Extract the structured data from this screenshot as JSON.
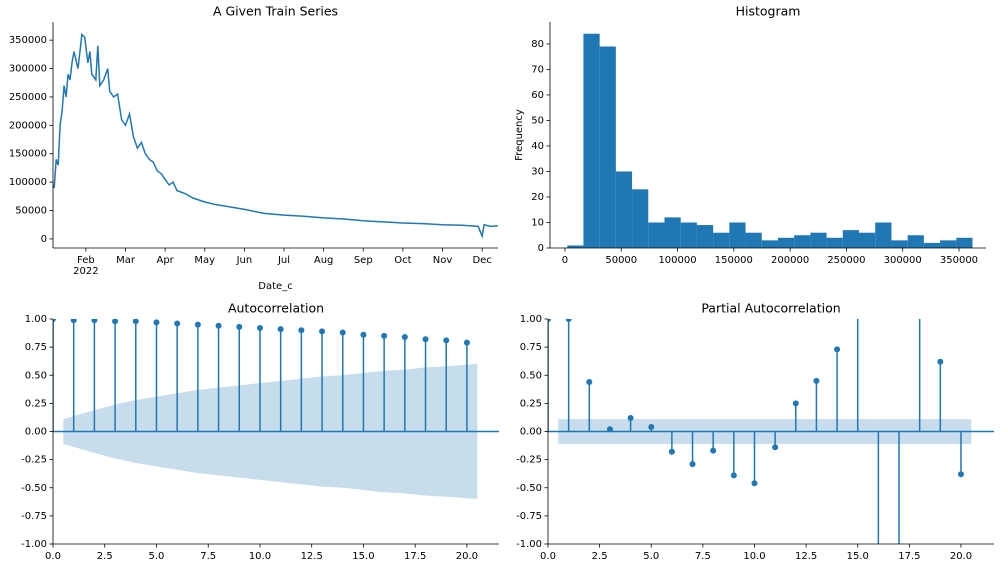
{
  "chart_data": [
    {
      "type": "line",
      "title": "A Given Train Series",
      "xlabel": "Date_c",
      "color": "#1f77b4",
      "x": [
        1.17,
        1.2,
        1.25,
        1.3,
        1.35,
        1.4,
        1.45,
        1.5,
        1.55,
        1.6,
        1.65,
        1.7,
        1.8,
        1.9,
        1.97,
        2.05,
        2.1,
        2.15,
        2.25,
        2.3,
        2.35,
        2.45,
        2.55,
        2.6,
        2.7,
        2.8,
        2.9,
        3.0,
        3.1,
        3.2,
        3.3,
        3.4,
        3.5,
        3.6,
        3.7,
        3.8,
        3.9,
        4.0,
        4.1,
        4.2,
        4.3,
        4.5,
        4.7,
        5.0,
        5.3,
        5.5,
        6.0,
        6.5,
        7.0,
        7.5,
        8.0,
        8.5,
        9.0,
        9.5,
        10.0,
        10.5,
        11.0,
        11.5,
        11.9,
        12.0,
        12.05,
        12.2,
        12.4
      ],
      "values": [
        95000,
        90000,
        140000,
        130000,
        200000,
        225000,
        270000,
        250000,
        290000,
        280000,
        310000,
        330000,
        300000,
        360000,
        355000,
        310000,
        330000,
        290000,
        280000,
        340000,
        270000,
        280000,
        300000,
        260000,
        250000,
        255000,
        210000,
        200000,
        220000,
        180000,
        160000,
        170000,
        150000,
        140000,
        135000,
        120000,
        115000,
        105000,
        95000,
        100000,
        85000,
        80000,
        72000,
        65000,
        60000,
        58000,
        52000,
        45000,
        42000,
        40000,
        37000,
        35000,
        32000,
        30000,
        28000,
        27000,
        25000,
        24000,
        22000,
        5000,
        25000,
        22000,
        23000
      ],
      "xlim": [
        1.17,
        12.4
      ],
      "xticks": [
        {
          "value": 2,
          "label": "Feb"
        },
        {
          "value": 3,
          "label": "Mar"
        },
        {
          "value": 4,
          "label": "Apr"
        },
        {
          "value": 5,
          "label": "May"
        },
        {
          "value": 6,
          "label": "Jun"
        },
        {
          "value": 7,
          "label": "Jul"
        },
        {
          "value": 8,
          "label": "Aug"
        },
        {
          "value": 9,
          "label": "Sep"
        },
        {
          "value": 10,
          "label": "Oct"
        },
        {
          "value": 11,
          "label": "Nov"
        },
        {
          "value": 12,
          "label": "Dec"
        }
      ],
      "year_label": "2022",
      "ylim": [
        -16000,
        382000
      ],
      "yticks": [
        0,
        50000,
        100000,
        150000,
        200000,
        250000,
        300000,
        350000
      ]
    },
    {
      "type": "histogram",
      "title": "Histogram",
      "ylabel": "Frequency",
      "color": "#1f77b4",
      "bins": [
        2000,
        16400,
        30800,
        45200,
        59600,
        74000,
        88400,
        102800,
        117200,
        131600,
        146000,
        160400,
        174800,
        189200,
        203600,
        218000,
        232400,
        246800,
        261200,
        275600,
        290000,
        304400,
        318800,
        333200,
        347600,
        362000
      ],
      "counts": [
        1,
        84,
        79,
        30,
        23,
        10,
        12,
        10,
        9,
        6,
        10,
        6,
        3,
        4,
        5,
        6,
        4,
        7,
        6,
        10,
        3,
        5,
        2,
        3,
        4
      ],
      "xlim": [
        -13300,
        374000
      ],
      "xticks": [
        0,
        50000,
        100000,
        150000,
        200000,
        250000,
        300000,
        350000
      ],
      "ylim": [
        0,
        88.6
      ],
      "yticks": [
        0,
        10,
        20,
        30,
        40,
        50,
        60,
        70,
        80
      ]
    },
    {
      "type": "stem",
      "title": "Autocorrelation",
      "color": "#1f77b4",
      "band_color": "#1f77b4",
      "x": [
        0,
        1,
        2,
        3,
        4,
        5,
        6,
        7,
        8,
        9,
        10,
        11,
        12,
        13,
        14,
        15,
        16,
        17,
        18,
        19,
        20
      ],
      "values": [
        1.0,
        0.99,
        0.99,
        0.98,
        0.98,
        0.97,
        0.96,
        0.95,
        0.94,
        0.93,
        0.92,
        0.91,
        0.9,
        0.89,
        0.88,
        0.86,
        0.85,
        0.84,
        0.82,
        0.81,
        0.79
      ],
      "confidence": [
        null,
        0.11,
        0.19,
        0.24,
        0.28,
        0.31,
        0.34,
        0.37,
        0.39,
        0.41,
        0.43,
        0.45,
        0.47,
        0.49,
        0.5,
        0.52,
        0.54,
        0.55,
        0.57,
        0.58,
        0.6
      ],
      "xlim": [
        0,
        21.55
      ],
      "xticks": [
        {
          "value": 0,
          "label": "0.0"
        },
        2.5,
        {
          "value": 5,
          "label": "5.0"
        },
        7.5,
        {
          "value": 10,
          "label": "10.0"
        },
        12.5,
        {
          "value": 15,
          "label": "15.0"
        },
        17.5,
        {
          "value": 20,
          "label": "20.0"
        }
      ],
      "ylim": [
        -1,
        1
      ],
      "yticks": [
        {
          "value": -1,
          "label": "-1.00"
        },
        {
          "value": -0.75,
          "label": "-0.75"
        },
        {
          "value": -0.5,
          "label": "-0.50"
        },
        {
          "value": -0.25,
          "label": "-0.25"
        },
        {
          "value": 0,
          "label": "0.00"
        },
        {
          "value": 0.25,
          "label": "0.25"
        },
        {
          "value": 0.5,
          "label": "0.50"
        },
        {
          "value": 0.75,
          "label": "0.75"
        },
        {
          "value": 1,
          "label": "1.00"
        }
      ]
    },
    {
      "type": "stem",
      "title": "Partial Autocorrelation",
      "color": "#1f77b4",
      "band_color": "#1f77b4",
      "x": [
        0,
        1,
        2,
        3,
        4,
        5,
        6,
        7,
        8,
        9,
        10,
        11,
        12,
        13,
        14,
        15,
        16,
        17,
        18,
        19,
        20
      ],
      "values": [
        1.0,
        1.0,
        0.44,
        0.02,
        0.12,
        0.04,
        -0.18,
        -0.29,
        -0.17,
        -0.39,
        -0.46,
        -0.14,
        0.25,
        0.45,
        0.73,
        1.2,
        -1.2,
        -1.2,
        1.2,
        0.62,
        -0.38
      ],
      "confidence": [
        null,
        0.11,
        0.11,
        0.11,
        0.11,
        0.11,
        0.11,
        0.11,
        0.11,
        0.11,
        0.11,
        0.11,
        0.11,
        0.11,
        0.11,
        0.11,
        0.11,
        0.11,
        0.11,
        0.11,
        0.11
      ],
      "xlim": [
        0,
        21.6
      ],
      "xticks": [
        {
          "value": 0,
          "label": "0.0"
        },
        2.5,
        {
          "value": 5,
          "label": "5.0"
        },
        7.5,
        {
          "value": 10,
          "label": "10.0"
        },
        12.5,
        {
          "value": 15,
          "label": "15.0"
        },
        17.5,
        {
          "value": 20,
          "label": "20.0"
        }
      ],
      "ylim": [
        -1,
        1
      ],
      "yticks": [
        {
          "value": -1,
          "label": "-1.00"
        },
        {
          "value": -0.75,
          "label": "-0.75"
        },
        {
          "value": -0.5,
          "label": "-0.50"
        },
        {
          "value": -0.25,
          "label": "-0.25"
        },
        {
          "value": 0,
          "label": "0.00"
        },
        {
          "value": 0.25,
          "label": "0.25"
        },
        {
          "value": 0.5,
          "label": "0.50"
        },
        {
          "value": 0.75,
          "label": "0.75"
        },
        {
          "value": 1,
          "label": "1.00"
        }
      ]
    }
  ]
}
